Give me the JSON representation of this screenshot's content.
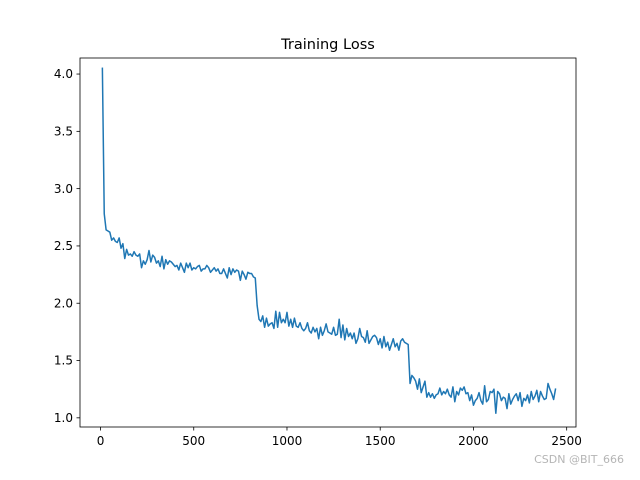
{
  "chart_data": {
    "type": "line",
    "title": "Training Loss",
    "xlabel": "",
    "ylabel": "",
    "xlim": [
      -110,
      2550
    ],
    "ylim": [
      0.92,
      4.14
    ],
    "xticks": [
      0,
      500,
      1000,
      1500,
      2000,
      2500
    ],
    "yticks": [
      1.0,
      1.5,
      2.0,
      2.5,
      3.0,
      3.5,
      4.0
    ],
    "xtick_labels": [
      "0",
      "500",
      "1000",
      "1500",
      "2000",
      "2500"
    ],
    "ytick_labels": [
      "1.0",
      "1.5",
      "2.0",
      "2.5",
      "3.0",
      "3.5",
      "4.0"
    ],
    "grid": false,
    "legend": false,
    "line_color": "#1f77b4",
    "series": [
      {
        "x": [
          10,
          20,
          30,
          40,
          50,
          60,
          70,
          80,
          90,
          100,
          110,
          120,
          130,
          140,
          150,
          160,
          170,
          180,
          190,
          200,
          210,
          220,
          230,
          240,
          250,
          260,
          270,
          280,
          290,
          300,
          310,
          320,
          330,
          340,
          350,
          360,
          370,
          380,
          390,
          400,
          410,
          420,
          430,
          440,
          450,
          460,
          470,
          480,
          490,
          500,
          510,
          520,
          530,
          540,
          550,
          560,
          570,
          580,
          590,
          600,
          610,
          620,
          630,
          640,
          650,
          660,
          670,
          680,
          690,
          700,
          710,
          720,
          730,
          740,
          750,
          760,
          770,
          780,
          790,
          800,
          810,
          820,
          830,
          840,
          850,
          860,
          870,
          880,
          890,
          900,
          910,
          920,
          930,
          940,
          950,
          960,
          970,
          980,
          990,
          1000,
          1010,
          1020,
          1030,
          1040,
          1050,
          1060,
          1070,
          1080,
          1090,
          1100,
          1110,
          1120,
          1130,
          1140,
          1150,
          1160,
          1170,
          1180,
          1190,
          1200,
          1210,
          1220,
          1230,
          1240,
          1250,
          1260,
          1270,
          1280,
          1290,
          1300,
          1310,
          1320,
          1330,
          1340,
          1350,
          1360,
          1370,
          1380,
          1390,
          1400,
          1410,
          1420,
          1430,
          1440,
          1450,
          1460,
          1470,
          1480,
          1490,
          1500,
          1510,
          1520,
          1530,
          1540,
          1550,
          1560,
          1570,
          1580,
          1590,
          1600,
          1610,
          1620,
          1630,
          1640,
          1650,
          1660,
          1670,
          1680,
          1690,
          1700,
          1710,
          1720,
          1730,
          1740,
          1750,
          1760,
          1770,
          1780,
          1790,
          1800,
          1810,
          1820,
          1830,
          1840,
          1850,
          1860,
          1870,
          1880,
          1890,
          1900,
          1910,
          1920,
          1930,
          1940,
          1950,
          1960,
          1970,
          1980,
          1990,
          2000,
          2010,
          2020,
          2030,
          2040,
          2050,
          2060,
          2070,
          2080,
          2090,
          2100,
          2110,
          2120,
          2130,
          2140,
          2150,
          2160,
          2170,
          2180,
          2190,
          2200,
          2210,
          2220,
          2230,
          2240,
          2250,
          2260,
          2270,
          2280,
          2290,
          2300,
          2310,
          2320,
          2330,
          2340,
          2350,
          2360,
          2370,
          2380,
          2390,
          2400,
          2410,
          2420,
          2430,
          2440
        ],
        "values": [
          4.05,
          2.78,
          2.64,
          2.63,
          2.62,
          2.55,
          2.57,
          2.54,
          2.53,
          2.57,
          2.48,
          2.52,
          2.39,
          2.47,
          2.42,
          2.43,
          2.41,
          2.45,
          2.42,
          2.41,
          2.43,
          2.31,
          2.37,
          2.34,
          2.38,
          2.46,
          2.36,
          2.42,
          2.4,
          2.35,
          2.37,
          2.32,
          2.41,
          2.3,
          2.38,
          2.34,
          2.37,
          2.36,
          2.34,
          2.32,
          2.33,
          2.29,
          2.35,
          2.31,
          2.27,
          2.35,
          2.31,
          2.35,
          2.29,
          2.31,
          2.3,
          2.32,
          2.33,
          2.28,
          2.3,
          2.3,
          2.33,
          2.31,
          2.27,
          2.29,
          2.31,
          2.28,
          2.3,
          2.26,
          2.26,
          2.3,
          2.26,
          2.22,
          2.31,
          2.25,
          2.3,
          2.27,
          2.29,
          2.28,
          2.2,
          2.28,
          2.25,
          2.21,
          2.27,
          2.26,
          2.26,
          2.23,
          2.22,
          1.98,
          1.86,
          1.84,
          1.89,
          1.79,
          1.87,
          1.8,
          1.82,
          1.83,
          1.78,
          1.93,
          1.79,
          1.92,
          1.83,
          1.86,
          1.83,
          1.92,
          1.8,
          1.86,
          1.79,
          1.87,
          1.8,
          1.79,
          1.83,
          1.78,
          1.76,
          1.78,
          1.83,
          1.76,
          1.74,
          1.79,
          1.75,
          1.78,
          1.69,
          1.79,
          1.72,
          1.76,
          1.82,
          1.75,
          1.74,
          1.73,
          1.79,
          1.72,
          1.73,
          1.86,
          1.7,
          1.81,
          1.68,
          1.78,
          1.71,
          1.74,
          1.69,
          1.74,
          1.65,
          1.69,
          1.78,
          1.71,
          1.7,
          1.66,
          1.76,
          1.65,
          1.68,
          1.71,
          1.72,
          1.7,
          1.64,
          1.69,
          1.61,
          1.71,
          1.62,
          1.66,
          1.59,
          1.64,
          1.69,
          1.62,
          1.65,
          1.59,
          1.67,
          1.69,
          1.66,
          1.65,
          1.64,
          1.3,
          1.37,
          1.35,
          1.32,
          1.25,
          1.34,
          1.22,
          1.27,
          1.32,
          1.18,
          1.22,
          1.18,
          1.21,
          1.17,
          1.2,
          1.21,
          1.26,
          1.2,
          1.23,
          1.21,
          1.25,
          1.2,
          1.18,
          1.27,
          1.14,
          1.23,
          1.2,
          1.26,
          1.24,
          1.27,
          1.21,
          1.22,
          1.15,
          1.2,
          1.11,
          1.15,
          1.17,
          1.22,
          1.15,
          1.12,
          1.28,
          1.14,
          1.16,
          1.23,
          1.22,
          1.25,
          1.04,
          1.23,
          1.21,
          1.15,
          1.18,
          1.17,
          1.08,
          1.21,
          1.12,
          1.16,
          1.19,
          1.21,
          1.15,
          1.22,
          1.1,
          1.17,
          1.15,
          1.2,
          1.13,
          1.23,
          1.16,
          1.19,
          1.24,
          1.14,
          1.23,
          1.19,
          1.16,
          1.17,
          1.3,
          1.25,
          1.21,
          1.16,
          1.25
        ]
      }
    ]
  },
  "watermark": {
    "text": "CSDN @BIT_666"
  }
}
